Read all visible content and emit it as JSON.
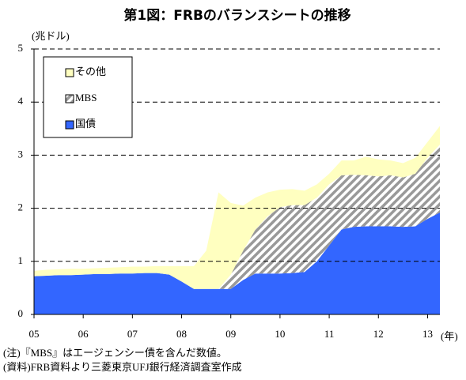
{
  "chart_data": {
    "type": "stacked-area",
    "title": "第1図：FRBのバランスシートの推移",
    "y_unit": "(兆ドル)",
    "x_unit": "(年)",
    "notes": [
      "(注)『MBS』はエージェンシー債を含んだ数値。",
      "(資料)FRB資料より三菱東京UFJ銀行経済調査室作成"
    ],
    "x": [
      2005,
      2005.25,
      2005.5,
      2005.75,
      2006,
      2006.25,
      2006.5,
      2006.75,
      2007,
      2007.25,
      2007.5,
      2007.75,
      2008,
      2008.25,
      2008.5,
      2008.75,
      2009,
      2009.25,
      2009.5,
      2009.75,
      2010,
      2010.25,
      2010.5,
      2010.75,
      2011,
      2011.25,
      2011.5,
      2011.75,
      2012,
      2012.25,
      2012.5,
      2012.75,
      2013,
      2013.25
    ],
    "series": [
      {
        "name": "国債",
        "color": "#3366ff",
        "values": [
          0.72,
          0.73,
          0.74,
          0.74,
          0.75,
          0.76,
          0.76,
          0.77,
          0.77,
          0.78,
          0.78,
          0.75,
          0.62,
          0.48,
          0.48,
          0.48,
          0.48,
          0.65,
          0.77,
          0.77,
          0.77,
          0.78,
          0.8,
          1.0,
          1.3,
          1.6,
          1.65,
          1.66,
          1.66,
          1.66,
          1.65,
          1.66,
          1.8,
          1.92
        ]
      },
      {
        "name": "MBS",
        "color": "#999999",
        "pattern": "hatch",
        "values": [
          0,
          0,
          0,
          0,
          0,
          0,
          0,
          0,
          0,
          0,
          0,
          0,
          0,
          0,
          0,
          0,
          0.27,
          0.55,
          0.83,
          1.08,
          1.25,
          1.28,
          1.26,
          1.2,
          1.15,
          1.02,
          0.98,
          0.96,
          0.94,
          0.96,
          0.93,
          0.99,
          1.15,
          1.28
        ]
      },
      {
        "name": "その他",
        "color": "#ffffc0",
        "values": [
          0.1,
          0.11,
          0.11,
          0.12,
          0.11,
          0.11,
          0.12,
          0.12,
          0.13,
          0.12,
          0.13,
          0.16,
          0.29,
          0.43,
          0.72,
          1.82,
          1.35,
          0.85,
          0.6,
          0.45,
          0.33,
          0.3,
          0.27,
          0.25,
          0.2,
          0.28,
          0.27,
          0.35,
          0.32,
          0.28,
          0.27,
          0.3,
          0.3,
          0.35
        ]
      }
    ],
    "xlim": [
      2005,
      2013.25
    ],
    "xticks": [
      {
        "value": 2005,
        "label": "05"
      },
      {
        "value": 2006,
        "label": "06"
      },
      {
        "value": 2007,
        "label": "07"
      },
      {
        "value": 2008,
        "label": "08"
      },
      {
        "value": 2009,
        "label": "09"
      },
      {
        "value": 2010,
        "label": "10"
      },
      {
        "value": 2011,
        "label": "11"
      },
      {
        "value": 2012,
        "label": "12"
      },
      {
        "value": 2013,
        "label": "13"
      }
    ],
    "ylim": [
      0,
      5
    ],
    "yticks": [
      0,
      1,
      2,
      3,
      4,
      5
    ],
    "grid": true,
    "legend": "upper left"
  }
}
